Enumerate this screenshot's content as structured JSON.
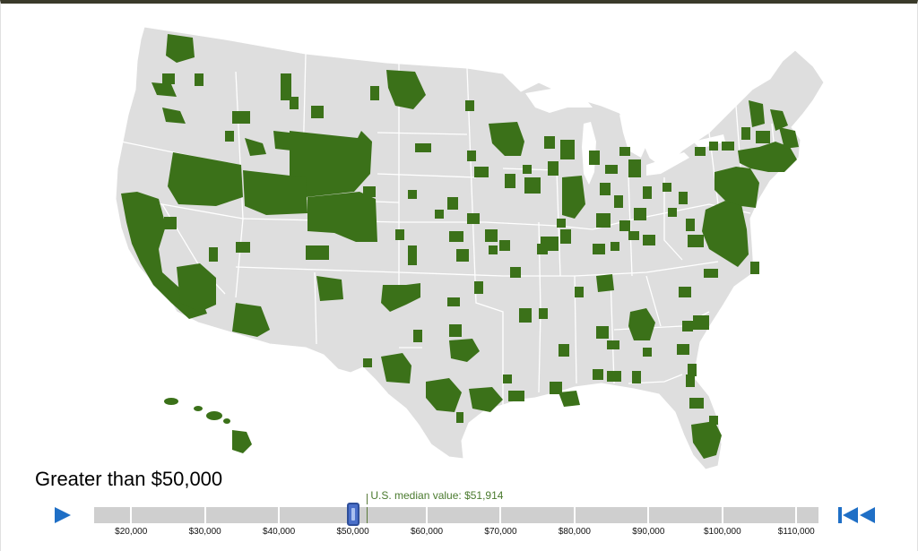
{
  "legend": {
    "caption": "Greater than $50,000"
  },
  "slider": {
    "min": 15000,
    "max": 113000,
    "current_value": 50000,
    "median_value": 51914,
    "median_label": "U.S. median value: $51,914",
    "tick_values": [
      20000,
      30000,
      40000,
      50000,
      60000,
      70000,
      80000,
      90000,
      100000,
      110000
    ],
    "tick_labels": [
      "$20,000",
      "$30,000",
      "$40,000",
      "$50,000",
      "$60,000",
      "$70,000",
      "$80,000",
      "$90,000",
      "$100,000",
      "$110,000"
    ]
  },
  "controls": {
    "play_icon": "play-icon",
    "rewind_icon": "rewind-to-start-icon"
  },
  "colors": {
    "land": "#dedede",
    "border": "#ffffff",
    "highlight": "#3b7119",
    "accent": "#1f6fc6",
    "median": "#4a7a2e"
  }
}
